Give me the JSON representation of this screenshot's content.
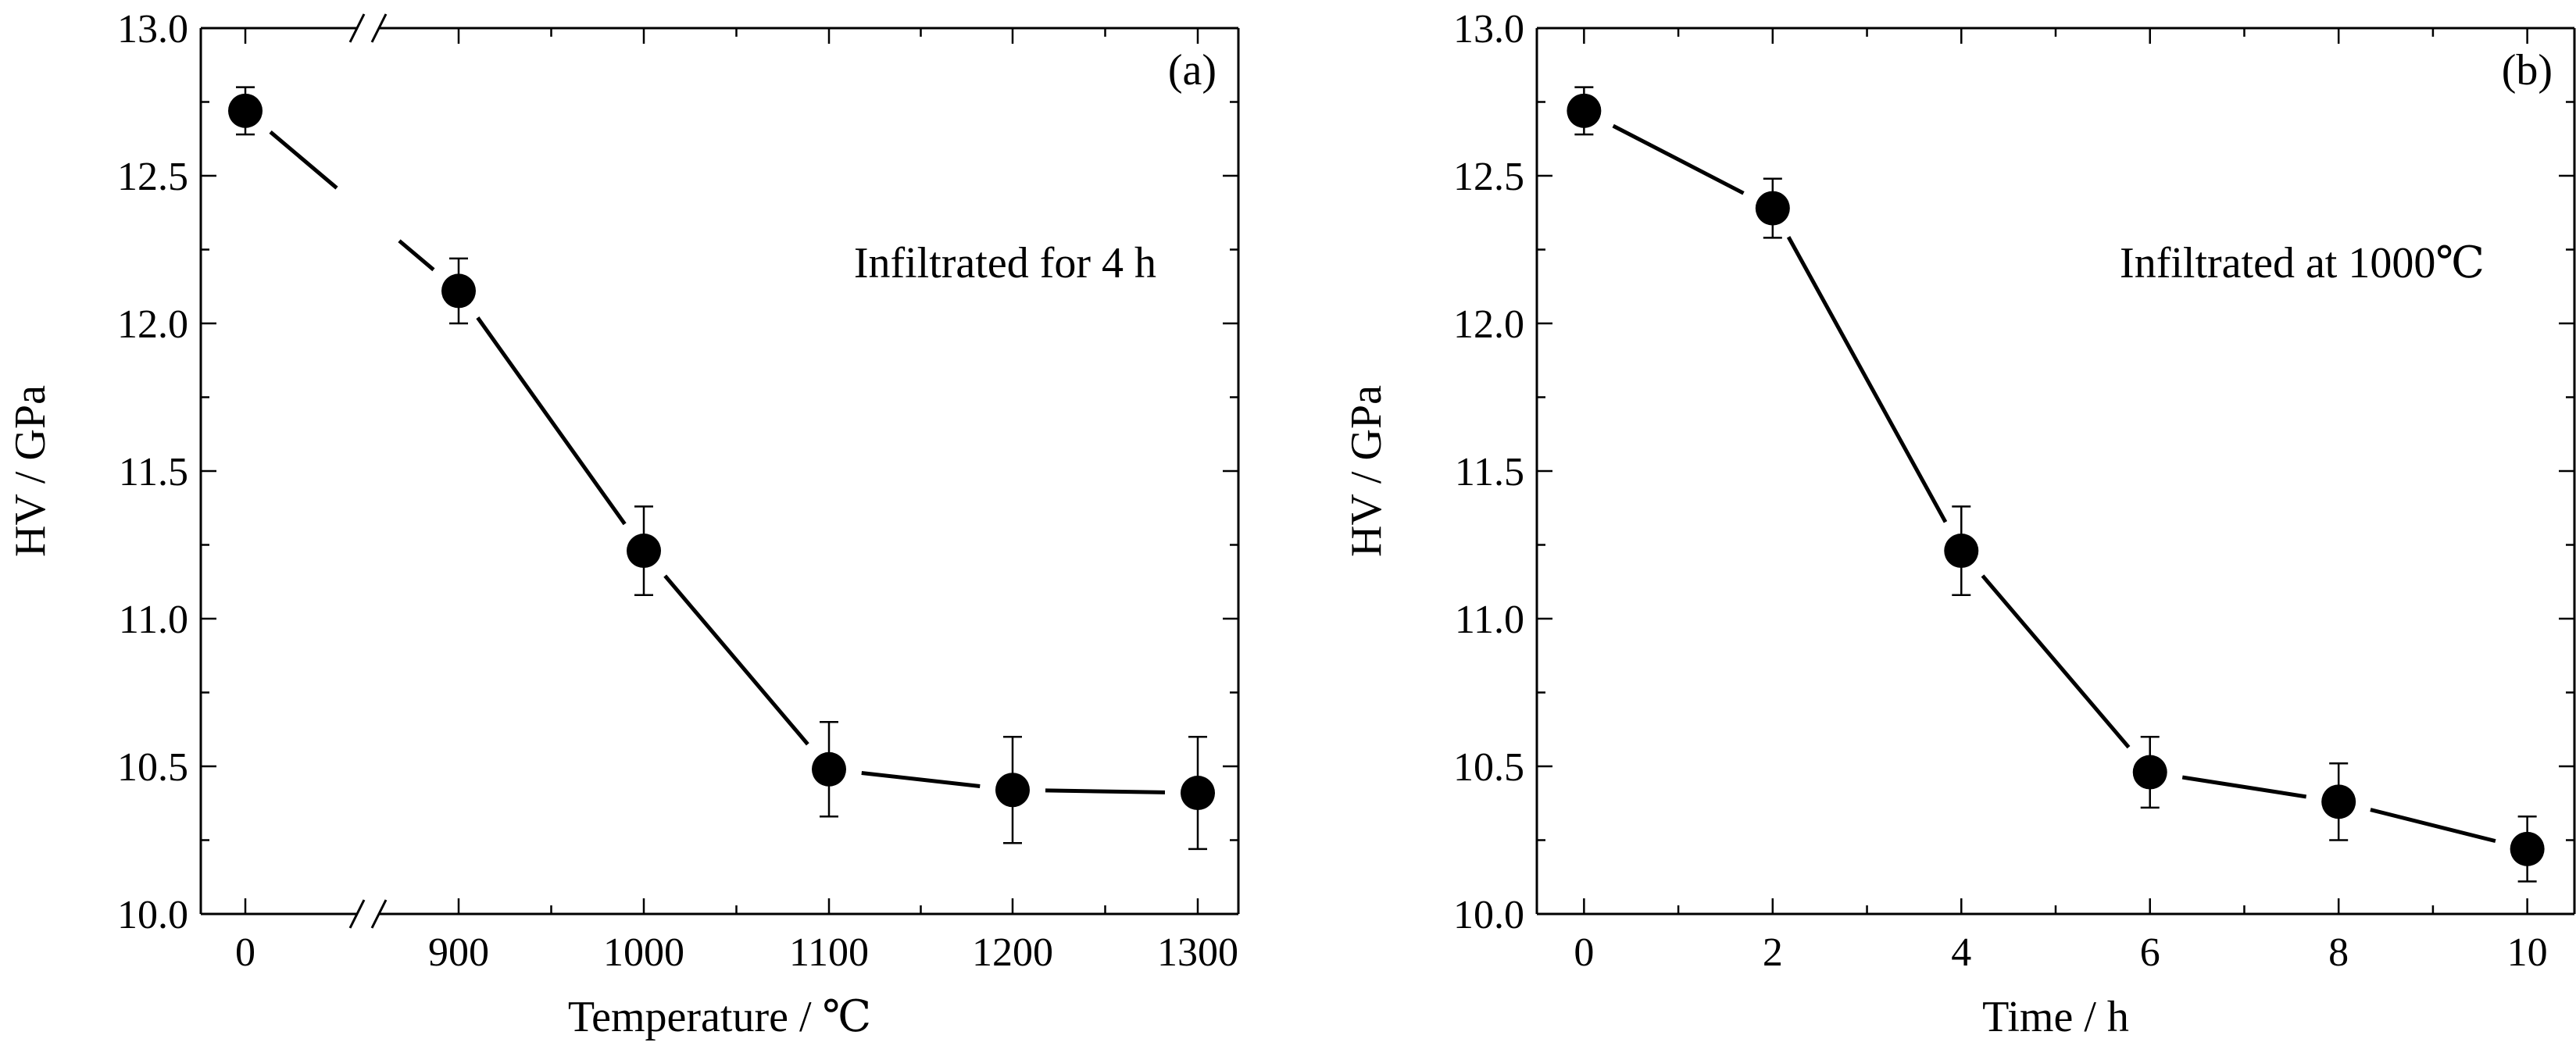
{
  "chart_data": [
    {
      "type": "line",
      "panel_label": "(a)",
      "annotation": "Infiltrated for 4 h",
      "xlabel": "Temperature / ℃",
      "ylabel": "HV / GPa",
      "x_axis_break": true,
      "x_tick_labels": [
        "0",
        "900",
        "1000",
        "1100",
        "1200",
        "1300"
      ],
      "ylim": [
        10.0,
        13.0
      ],
      "y_tick_labels": [
        "10.0",
        "10.5",
        "11.0",
        "11.5",
        "12.0",
        "12.5",
        "13.0"
      ],
      "series": [
        {
          "x": [
            0,
            900,
            1000,
            1100,
            1200,
            1300
          ],
          "y": [
            12.72,
            12.11,
            11.23,
            10.49,
            10.42,
            10.41
          ],
          "error": [
            0.08,
            0.11,
            0.15,
            0.16,
            0.18,
            0.19
          ]
        }
      ]
    },
    {
      "type": "line",
      "panel_label": "(b)",
      "annotation": "Infiltrated at 1000℃",
      "xlabel": "Time / h",
      "ylabel": "HV / GPa",
      "xlim": [
        -0.5,
        10.5
      ],
      "x_tick_labels": [
        "0",
        "2",
        "4",
        "6",
        "8",
        "10"
      ],
      "ylim": [
        10.0,
        13.0
      ],
      "y_tick_labels": [
        "10.0",
        "10.5",
        "11.0",
        "11.5",
        "12.0",
        "12.5",
        "13.0"
      ],
      "series": [
        {
          "x": [
            0,
            2,
            4,
            6,
            8,
            10
          ],
          "y": [
            12.72,
            12.39,
            11.23,
            10.48,
            10.38,
            10.22
          ],
          "error": [
            0.08,
            0.1,
            0.15,
            0.12,
            0.13,
            0.11
          ]
        }
      ]
    }
  ]
}
